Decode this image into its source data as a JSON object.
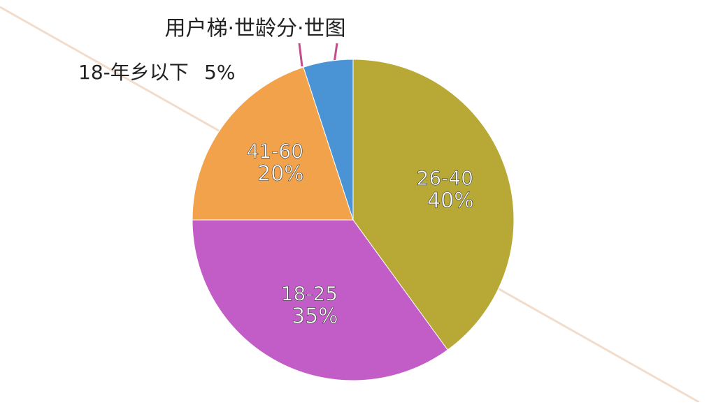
{
  "chart_data": {
    "type": "pie",
    "title": "用户梯·世龄分·世图",
    "categories": [
      "26-40",
      "18-25",
      "41-60",
      "18-年乡以下"
    ],
    "values": [
      40,
      35,
      20,
      5
    ],
    "value_labels": [
      "40%",
      "35%",
      "20%",
      "5%"
    ],
    "colors": [
      "#b8a936",
      "#c25cc6",
      "#f2a24a",
      "#4a94d6"
    ]
  }
}
